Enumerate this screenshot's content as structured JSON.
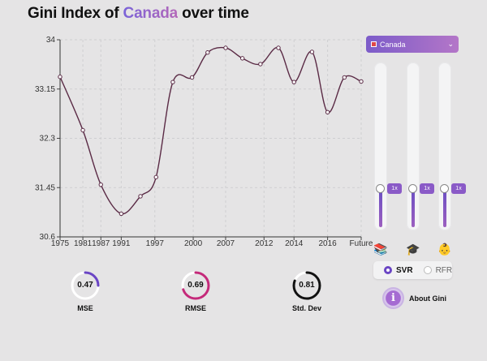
{
  "title": {
    "prefix": "Gini Index of ",
    "country": "Canada",
    "suffix": " over time"
  },
  "country_select": {
    "value": "Canada",
    "icon": "flag-icon"
  },
  "sliders": [
    {
      "name": "books",
      "label": "1x",
      "icon": "📚",
      "level": 0.1
    },
    {
      "name": "graduation",
      "label": "1x",
      "icon": "🎓",
      "level": 0.1
    },
    {
      "name": "baby",
      "label": "1x",
      "icon": "👶",
      "level": 0.1
    }
  ],
  "model_toggle": {
    "options": [
      "SVR",
      "RFR"
    ],
    "selected": "SVR"
  },
  "about": {
    "label": "About Gini",
    "icon_glyph": "i"
  },
  "metrics": [
    {
      "label": "MSE",
      "value": "0.47",
      "fraction": 0.25,
      "color": "#6a45c4"
    },
    {
      "label": "RMSE",
      "value": "0.69",
      "fraction": 0.7,
      "color": "#c42a7a"
    },
    {
      "label": "Std. Dev",
      "value": "0.81",
      "fraction": 0.81,
      "color": "#111111"
    }
  ],
  "chart_data": {
    "type": "line",
    "title": "Gini Index of Canada over time",
    "categories": [
      "1975",
      "1981",
      "1987",
      "1991",
      "1997",
      "2000",
      "2007",
      "2012",
      "2014",
      "2016",
      "Future"
    ],
    "x_tick_labels": [
      "1975",
      "1981",
      "1987",
      "1991",
      "1997",
      "2000",
      "2007",
      "2012",
      "2014",
      "2016",
      "Future"
    ],
    "y_tick_labels": [
      "34",
      "33.15",
      "32.3",
      "31.45",
      "30.6"
    ],
    "ylim": [
      30.6,
      34
    ],
    "grid": true,
    "points": [
      {
        "x": 0,
        "y": 33.36
      },
      {
        "x": 0.95,
        "y": 32.44
      },
      {
        "x": 1.7,
        "y": 31.5
      },
      {
        "x": 2.55,
        "y": 31.0
      },
      {
        "x": 3.35,
        "y": 31.3
      },
      {
        "x": 4.0,
        "y": 31.63
      },
      {
        "x": 4.7,
        "y": 33.27
      },
      {
        "x": 5.5,
        "y": 33.35
      },
      {
        "x": 6.15,
        "y": 33.78
      },
      {
        "x": 6.9,
        "y": 33.86
      },
      {
        "x": 7.6,
        "y": 33.68
      },
      {
        "x": 8.35,
        "y": 33.58
      },
      {
        "x": 9.1,
        "y": 33.86
      },
      {
        "x": 9.75,
        "y": 33.27
      },
      {
        "x": 10.5,
        "y": 33.79
      },
      {
        "x": 11.15,
        "y": 32.75
      },
      {
        "x": 11.85,
        "y": 33.35
      },
      {
        "x": 12.55,
        "y": 33.28
      }
    ]
  }
}
